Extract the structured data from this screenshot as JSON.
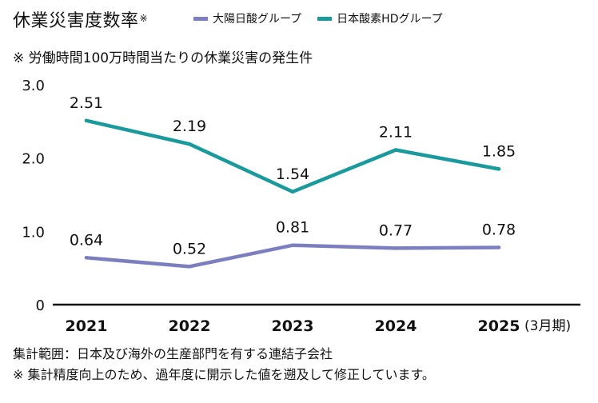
{
  "title": {
    "text": "休業災害度数率",
    "mark": "※"
  },
  "subtitle": "※ 労働時間100万時間当たりの休業災害の発生件",
  "legend": [
    {
      "label": "大陽日酸グループ",
      "color": "#7b7fbf"
    },
    {
      "label": "日本酸素HDグループ",
      "color": "#1a9a9c"
    }
  ],
  "chart_data": {
    "type": "line",
    "title": "休業災害度数率※",
    "subtitle": "※ 労働時間100万時間当たりの休業災害の発生件",
    "categories": [
      "2021",
      "2022",
      "2023",
      "2024",
      "2025"
    ],
    "x_suffix": "(3月期)",
    "xlabel": "",
    "ylabel": "",
    "ylim": [
      0,
      3.0
    ],
    "yticks": [
      0,
      1.0,
      2.0,
      3.0
    ],
    "ytick_labels": [
      "0",
      "1.0",
      "2.0",
      "3.0"
    ],
    "grid": false,
    "legend_position": "top",
    "series": [
      {
        "name": "日本酸素HDグループ",
        "color": "#1a9a9c",
        "values": [
          2.51,
          2.19,
          1.54,
          2.11,
          1.85
        ],
        "labels": [
          "2.51",
          "2.19",
          "1.54",
          "2.11",
          "1.85"
        ]
      },
      {
        "name": "大陽日酸グループ",
        "color": "#7b7fbf",
        "values": [
          0.64,
          0.52,
          0.81,
          0.77,
          0.78
        ],
        "labels": [
          "0.64",
          "0.52",
          "0.81",
          "0.77",
          "0.78"
        ]
      }
    ]
  },
  "footnotes": [
    "集計範囲：日本及び海外の生産部門を有する連結子会社",
    "※ 集計精度向上のため、過年度に開示した値を遡及して修正しています。"
  ]
}
